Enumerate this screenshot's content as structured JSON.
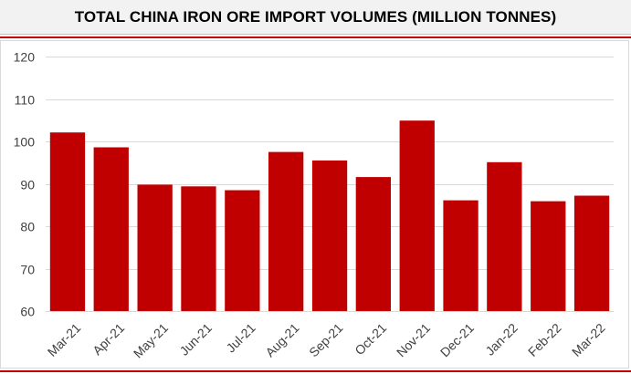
{
  "colors": {
    "bar": "#c00000",
    "grid": "#d9d9d9",
    "title_bg": "#f2f2f2",
    "accent_rule": "#c00000",
    "tick_text": "#404040"
  },
  "chart_data": {
    "type": "bar",
    "title": "TOTAL CHINA IRON ORE IMPORT VOLUMES (MILLION TONNES)",
    "xlabel": "",
    "ylabel": "",
    "categories": [
      "Mar-21",
      "Apr-21",
      "May-21",
      "Jun-21",
      "Jul-21",
      "Aug-21",
      "Sep-21",
      "Oct-21",
      "Nov-21",
      "Dec-21",
      "Jan-22",
      "Feb-22",
      "Mar-22"
    ],
    "values": [
      102.1,
      98.6,
      89.8,
      89.4,
      88.5,
      97.5,
      95.5,
      91.6,
      104.9,
      86.1,
      95.1,
      85.9,
      87.2
    ],
    "ylim": [
      60,
      120
    ],
    "yticks": [
      60,
      70,
      80,
      90,
      100,
      110,
      120
    ],
    "grid": true,
    "legend": "none"
  }
}
